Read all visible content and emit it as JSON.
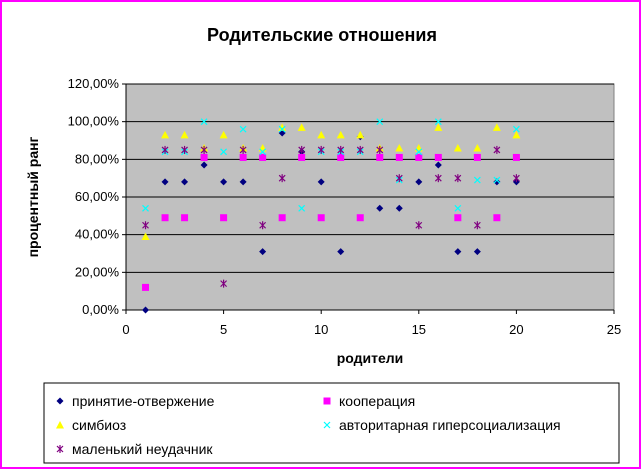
{
  "chart_data": {
    "type": "scatter",
    "title": "Родительские отношения",
    "xlabel": "родители",
    "ylabel": "процентный ранг",
    "xlim": [
      0,
      25
    ],
    "ylim": [
      0,
      1.2
    ],
    "x_ticks": [
      "0",
      "5",
      "10",
      "15",
      "20",
      "25"
    ],
    "y_ticks": [
      "0,00%",
      "20,00%",
      "40,00%",
      "60,00%",
      "80,00%",
      "100,00%",
      "120,00%"
    ],
    "grid": "horizontal",
    "legend_position": "bottom",
    "plot_background": "#c0c0c0",
    "series": [
      {
        "name": "принятие-отвержение",
        "marker": "diamond",
        "color": "#000080",
        "points": [
          [
            1,
            0.0
          ],
          [
            2,
            0.68
          ],
          [
            3,
            0.68
          ],
          [
            4,
            0.77
          ],
          [
            5,
            0.68
          ],
          [
            6,
            0.68
          ],
          [
            7,
            0.31
          ],
          [
            8,
            0.94
          ],
          [
            9,
            0.84
          ],
          [
            10,
            0.68
          ],
          [
            11,
            0.31
          ],
          [
            12,
            0.92
          ],
          [
            13,
            0.54
          ],
          [
            14,
            0.54
          ],
          [
            15,
            0.68
          ],
          [
            16,
            0.77
          ],
          [
            17,
            0.31
          ],
          [
            18,
            0.31
          ],
          [
            19,
            0.68
          ],
          [
            20,
            0.68
          ]
        ]
      },
      {
        "name": "кооперация",
        "marker": "square",
        "color": "#ff00ff",
        "points": [
          [
            1,
            0.12
          ],
          [
            2,
            0.49
          ],
          [
            3,
            0.49
          ],
          [
            4,
            0.81
          ],
          [
            5,
            0.49
          ],
          [
            6,
            0.81
          ],
          [
            7,
            0.81
          ],
          [
            8,
            0.49
          ],
          [
            9,
            0.81
          ],
          [
            10,
            0.49
          ],
          [
            11,
            0.81
          ],
          [
            12,
            0.49
          ],
          [
            13,
            0.81
          ],
          [
            14,
            0.81
          ],
          [
            15,
            0.81
          ],
          [
            16,
            0.81
          ],
          [
            17,
            0.49
          ],
          [
            18,
            0.81
          ],
          [
            19,
            0.49
          ],
          [
            20,
            0.81
          ]
        ]
      },
      {
        "name": "симбиоз",
        "marker": "triangle",
        "color": "#ffff00",
        "points": [
          [
            1,
            0.39
          ],
          [
            2,
            0.93
          ],
          [
            3,
            0.93
          ],
          [
            4,
            0.86
          ],
          [
            5,
            0.93
          ],
          [
            6,
            0.86
          ],
          [
            7,
            0.86
          ],
          [
            8,
            0.97
          ],
          [
            9,
            0.97
          ],
          [
            10,
            0.93
          ],
          [
            11,
            0.93
          ],
          [
            12,
            0.93
          ],
          [
            13,
            0.86
          ],
          [
            14,
            0.86
          ],
          [
            15,
            0.86
          ],
          [
            16,
            0.97
          ],
          [
            17,
            0.86
          ],
          [
            18,
            0.86
          ],
          [
            19,
            0.97
          ],
          [
            20,
            0.93
          ]
        ]
      },
      {
        "name": "авторитарная гиперсоциализация",
        "marker": "x",
        "color": "#00ffff",
        "points": [
          [
            1,
            0.54
          ],
          [
            2,
            0.84
          ],
          [
            3,
            0.84
          ],
          [
            4,
            1.0
          ],
          [
            5,
            0.84
          ],
          [
            6,
            0.96
          ],
          [
            7,
            0.84
          ],
          [
            8,
            0.96
          ],
          [
            9,
            0.54
          ],
          [
            10,
            0.84
          ],
          [
            11,
            0.84
          ],
          [
            12,
            0.84
          ],
          [
            13,
            1.0
          ],
          [
            14,
            0.69
          ],
          [
            15,
            0.84
          ],
          [
            16,
            1.0
          ],
          [
            17,
            0.54
          ],
          [
            18,
            0.69
          ],
          [
            19,
            0.69
          ],
          [
            20,
            0.96
          ]
        ]
      },
      {
        "name": "маленький неудачник",
        "marker": "star",
        "color": "#800080",
        "points": [
          [
            1,
            0.45
          ],
          [
            2,
            0.85
          ],
          [
            3,
            0.85
          ],
          [
            4,
            0.85
          ],
          [
            5,
            0.14
          ],
          [
            6,
            0.85
          ],
          [
            7,
            0.45
          ],
          [
            8,
            0.7
          ],
          [
            9,
            0.85
          ],
          [
            10,
            0.85
          ],
          [
            11,
            0.85
          ],
          [
            12,
            0.85
          ],
          [
            13,
            0.85
          ],
          [
            14,
            0.7
          ],
          [
            15,
            0.45
          ],
          [
            16,
            0.7
          ],
          [
            17,
            0.7
          ],
          [
            18,
            0.45
          ],
          [
            19,
            0.85
          ],
          [
            20,
            0.7
          ]
        ]
      }
    ]
  }
}
